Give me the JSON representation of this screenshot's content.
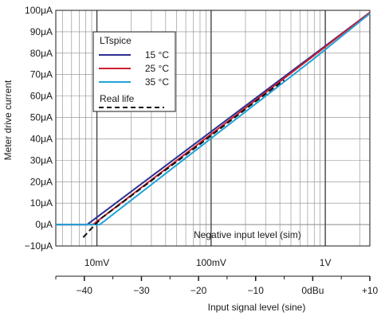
{
  "chart_data": {
    "type": "line",
    "ylabel": "Meter drive current",
    "y_ticks": [
      "100μA",
      "90μA",
      "80μA",
      "70μA",
      "60μA",
      "50μA",
      "40μA",
      "30μA",
      "20μA",
      "10μA",
      "0μA",
      "−10μA"
    ],
    "y_tick_values": [
      100,
      90,
      80,
      70,
      60,
      50,
      40,
      30,
      20,
      10,
      0,
      -10
    ],
    "ylim": [
      -10,
      100
    ],
    "xlim_dbu": [
      -45,
      10
    ],
    "top_axis": {
      "labels": [
        "10mV",
        "100mV",
        "1V"
      ],
      "label_dbu": [
        -37.8,
        -17.8,
        2.2
      ]
    },
    "bottom_axis": {
      "labels": [
        "−40",
        "−30",
        "−20",
        "−10",
        "0dBu",
        "+10"
      ],
      "values": [
        -40,
        -30,
        -20,
        -10,
        0,
        10
      ],
      "xlabel": "Input signal level (sine)"
    },
    "annotation": "Negative input level (sim)",
    "legend_title": "LTspice",
    "series": [
      {
        "name": "15 °C",
        "color": "#2b2f8f",
        "dash": false,
        "points": [
          [
            -45,
            0
          ],
          [
            -39.5,
            0
          ],
          [
            0,
            79
          ],
          [
            10,
            99
          ]
        ]
      },
      {
        "name": "25 °C",
        "color": "#cc1f2f",
        "dash": false,
        "points": [
          [
            -45,
            0
          ],
          [
            -38.5,
            0
          ],
          [
            0,
            78.5
          ],
          [
            10,
            99
          ]
        ]
      },
      {
        "name": "35 °C",
        "color": "#1fa3d9",
        "dash": false,
        "points": [
          [
            -45,
            0
          ],
          [
            -37.3,
            0
          ],
          [
            0,
            77
          ],
          [
            10,
            98.5
          ]
        ]
      },
      {
        "name": "Real life",
        "color": "#111111",
        "dash": true,
        "points": [
          [
            -40.2,
            -6
          ],
          [
            -39,
            -2.5
          ],
          [
            -37,
            3
          ],
          [
            -30,
            17
          ],
          [
            -20,
            37
          ],
          [
            -10,
            57.5
          ],
          [
            -5,
            67.5
          ]
        ]
      }
    ],
    "grid": true
  }
}
